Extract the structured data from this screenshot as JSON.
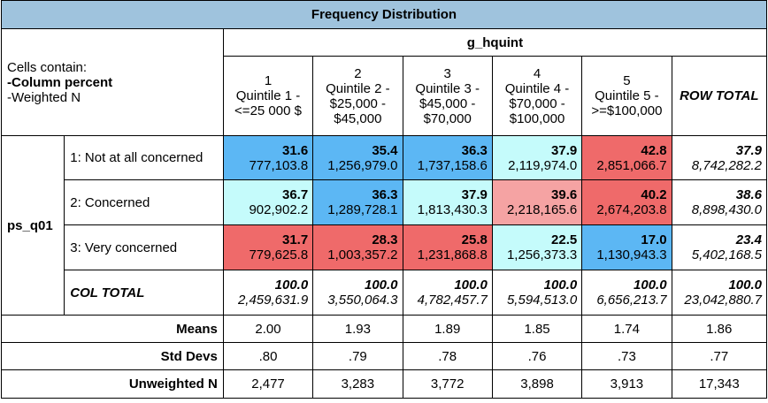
{
  "title": "Frequency Distribution",
  "legend": {
    "line1": "Cells contain:",
    "line2": "-Column percent",
    "line3": "-Weighted N"
  },
  "col_var": "g_hquint",
  "row_var": "ps_q01",
  "columns": [
    {
      "num": "1",
      "label": "Quintile 1 - <=25 000 $"
    },
    {
      "num": "2",
      "label": "Quintile 2 - $25,000 - $45,000"
    },
    {
      "num": "3",
      "label": "Quintile 3 - $45,000 - $70,000"
    },
    {
      "num": "4",
      "label": "Quintile 4 - $70,000 - $100,000"
    },
    {
      "num": "5",
      "label": "Quintile 5 - >=$100,000"
    }
  ],
  "row_total_label": "ROW TOTAL",
  "col_total_label": "COL TOTAL",
  "colors": {
    "dark_blue": "#5cb7f4",
    "light_cyan": "#c5fbfb",
    "light_red": "#f5a3a3",
    "dark_red": "#ef6a6a"
  },
  "rows": [
    {
      "label": "1: Not at all concerned",
      "cells": [
        {
          "pct": "31.6",
          "n": "777,103.8",
          "color": "#5cb7f4"
        },
        {
          "pct": "35.4",
          "n": "1,256,979.0",
          "color": "#5cb7f4"
        },
        {
          "pct": "36.3",
          "n": "1,737,158.6",
          "color": "#5cb7f4"
        },
        {
          "pct": "37.9",
          "n": "2,119,974.0",
          "color": "#c5fbfb"
        },
        {
          "pct": "42.8",
          "n": "2,851,066.7",
          "color": "#ef6a6a"
        }
      ],
      "total": {
        "pct": "37.9",
        "n": "8,742,282.2"
      }
    },
    {
      "label": "2: Concerned",
      "cells": [
        {
          "pct": "36.7",
          "n": "902,902.2",
          "color": "#c5fbfb"
        },
        {
          "pct": "36.3",
          "n": "1,289,728.1",
          "color": "#5cb7f4"
        },
        {
          "pct": "37.9",
          "n": "1,813,430.3",
          "color": "#c5fbfb"
        },
        {
          "pct": "39.6",
          "n": "2,218,165.6",
          "color": "#f5a3a3"
        },
        {
          "pct": "40.2",
          "n": "2,674,203.8",
          "color": "#ef6a6a"
        }
      ],
      "total": {
        "pct": "38.6",
        "n": "8,898,430.0"
      }
    },
    {
      "label": "3: Very concerned",
      "cells": [
        {
          "pct": "31.7",
          "n": "779,625.8",
          "color": "#ef6a6a"
        },
        {
          "pct": "28.3",
          "n": "1,003,357.2",
          "color": "#ef6a6a"
        },
        {
          "pct": "25.8",
          "n": "1,231,868.8",
          "color": "#ef6a6a"
        },
        {
          "pct": "22.5",
          "n": "1,256,373.3",
          "color": "#c5fbfb"
        },
        {
          "pct": "17.0",
          "n": "1,130,943.3",
          "color": "#5cb7f4"
        }
      ],
      "total": {
        "pct": "23.4",
        "n": "5,402,168.5"
      }
    }
  ],
  "col_totals": [
    {
      "pct": "100.0",
      "n": "2,459,631.9"
    },
    {
      "pct": "100.0",
      "n": "3,550,064.3"
    },
    {
      "pct": "100.0",
      "n": "4,782,457.7"
    },
    {
      "pct": "100.0",
      "n": "5,594,513.0"
    },
    {
      "pct": "100.0",
      "n": "6,656,213.7"
    },
    {
      "pct": "100.0",
      "n": "23,042,880.7"
    }
  ],
  "stats": [
    {
      "label": "Means",
      "values": [
        "2.00",
        "1.93",
        "1.89",
        "1.85",
        "1.74",
        "1.86"
      ]
    },
    {
      "label": "Std Devs",
      "values": [
        ".80",
        ".79",
        ".78",
        ".76",
        ".73",
        ".77"
      ]
    },
    {
      "label": "Unweighted N",
      "values": [
        "2,477",
        "3,283",
        "3,772",
        "3,898",
        "3,913",
        "17,343"
      ]
    }
  ]
}
